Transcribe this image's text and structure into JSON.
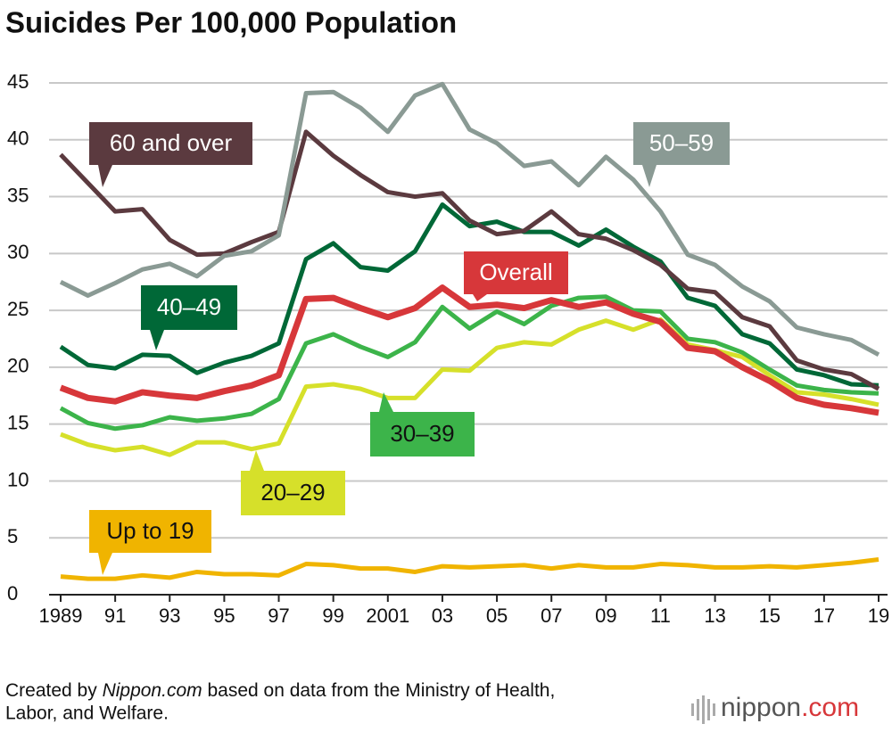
{
  "chart_data": {
    "type": "line",
    "title": "Suicides Per 100,000 Population",
    "x": [
      1989,
      1990,
      1991,
      1992,
      1993,
      1994,
      1995,
      1996,
      1997,
      1998,
      1999,
      2000,
      2001,
      2002,
      2003,
      2004,
      2005,
      2006,
      2007,
      2008,
      2009,
      2010,
      2011,
      2012,
      2013,
      2014,
      2015,
      2016,
      2017,
      2018,
      2019
    ],
    "xlim": [
      1989,
      2019
    ],
    "xticks": [
      1989,
      {
        "value": 1991,
        "label": "91"
      },
      {
        "value": 1993,
        "label": "93"
      },
      {
        "value": 1995,
        "label": "95"
      },
      {
        "value": 1997,
        "label": "97"
      },
      {
        "value": 1999,
        "label": "99"
      },
      2001,
      {
        "value": 2003,
        "label": "03"
      },
      {
        "value": 2005,
        "label": "05"
      },
      {
        "value": 2007,
        "label": "07"
      },
      {
        "value": 2009,
        "label": "09"
      },
      {
        "value": 2011,
        "label": "11"
      },
      {
        "value": 2013,
        "label": "13"
      },
      {
        "value": 2015,
        "label": "15"
      },
      {
        "value": 2017,
        "label": "17"
      },
      {
        "value": 2019,
        "label": "19"
      }
    ],
    "ylim": [
      0,
      45
    ],
    "yticks": [
      0,
      5,
      10,
      15,
      20,
      25,
      30,
      35,
      40,
      45
    ],
    "grid": true,
    "series": [
      {
        "name": "Up to 19",
        "color": "#f0b400",
        "values": [
          1.6,
          1.4,
          1.4,
          1.7,
          1.5,
          2.0,
          1.8,
          1.8,
          1.7,
          2.7,
          2.6,
          2.3,
          2.3,
          2.0,
          2.5,
          2.4,
          2.5,
          2.6,
          2.3,
          2.6,
          2.4,
          2.4,
          2.7,
          2.6,
          2.4,
          2.4,
          2.5,
          2.4,
          2.6,
          2.8,
          3.1
        ]
      },
      {
        "name": "20–29",
        "color": "#d6e02a",
        "values": [
          14.1,
          13.2,
          12.7,
          13.0,
          12.3,
          13.4,
          13.4,
          12.8,
          13.3,
          18.3,
          18.5,
          18.1,
          17.3,
          17.3,
          19.8,
          19.7,
          21.7,
          22.2,
          22.0,
          23.3,
          24.1,
          23.3,
          24.2,
          22.0,
          21.5,
          20.9,
          19.3,
          17.8,
          17.6,
          17.2,
          16.7
        ]
      },
      {
        "name": "30–39",
        "color": "#3cb44a",
        "values": [
          16.4,
          15.1,
          14.6,
          14.9,
          15.6,
          15.3,
          15.5,
          15.9,
          17.2,
          22.1,
          22.9,
          21.8,
          20.9,
          22.2,
          25.3,
          23.4,
          24.9,
          23.8,
          25.4,
          26.1,
          26.2,
          25.0,
          24.9,
          22.5,
          22.2,
          21.3,
          19.8,
          18.4,
          18.0,
          17.8,
          17.7
        ]
      },
      {
        "name": "Overall",
        "color": "#d7373a",
        "values": [
          18.2,
          17.3,
          17.0,
          17.8,
          17.5,
          17.3,
          17.9,
          18.4,
          19.3,
          26.0,
          26.1,
          25.2,
          24.4,
          25.2,
          27.0,
          25.3,
          25.5,
          25.2,
          25.9,
          25.3,
          25.7,
          24.7,
          24.0,
          21.7,
          21.4,
          20.0,
          18.8,
          17.3,
          16.7,
          16.4,
          16.0
        ]
      },
      {
        "name": "40–49",
        "color": "#006837",
        "values": [
          21.8,
          20.2,
          19.9,
          21.1,
          21.0,
          19.5,
          20.4,
          21.0,
          22.1,
          29.5,
          30.9,
          28.8,
          28.5,
          30.2,
          34.3,
          32.4,
          32.8,
          31.9,
          31.9,
          30.7,
          32.1,
          30.6,
          29.3,
          26.1,
          25.4,
          22.9,
          22.1,
          19.8,
          19.3,
          18.5,
          18.4
        ]
      },
      {
        "name": "60 and over",
        "color": "#5b3a3f",
        "values": [
          38.7,
          36.2,
          33.7,
          33.9,
          31.2,
          29.9,
          30.0,
          31.0,
          31.9,
          40.7,
          38.6,
          36.9,
          35.4,
          35.0,
          35.3,
          32.9,
          31.7,
          32.0,
          33.7,
          31.7,
          31.3,
          30.3,
          29.0,
          26.9,
          26.6,
          24.4,
          23.6,
          20.6,
          19.8,
          19.4,
          18.1
        ]
      },
      {
        "name": "50–59",
        "color": "#8a9a94",
        "values": [
          27.5,
          26.3,
          27.4,
          28.6,
          29.1,
          28.0,
          29.8,
          30.2,
          31.6,
          44.1,
          44.2,
          42.8,
          40.7,
          43.9,
          44.9,
          40.9,
          39.7,
          37.7,
          38.1,
          36.0,
          38.5,
          36.5,
          33.7,
          29.9,
          29.0,
          27.1,
          25.8,
          23.5,
          22.9,
          22.4,
          21.1
        ]
      }
    ]
  },
  "footer": {
    "note": [
      "Created by ",
      "Nippon.com",
      " based on data from the Ministry of Health,",
      "Labor, and Welfare."
    ],
    "logo": [
      "nippon",
      ".com"
    ]
  }
}
